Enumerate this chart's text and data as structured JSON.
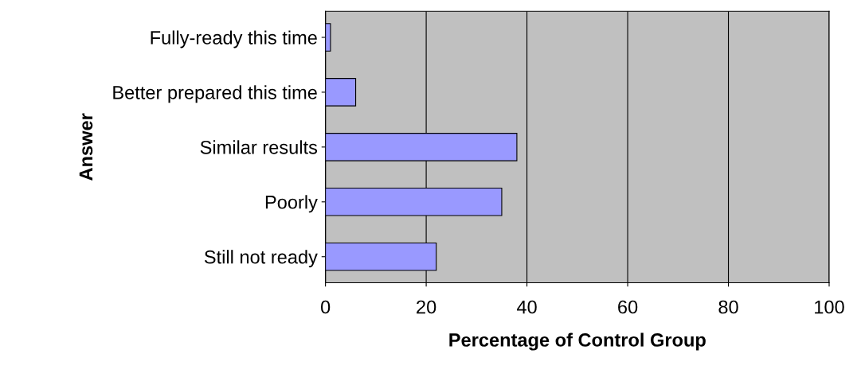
{
  "chart_data": {
    "type": "bar",
    "orientation": "horizontal",
    "xlabel": "Percentage of Control Group",
    "ylabel": "Answer",
    "categories": [
      "Fully-ready this time",
      "Better prepared this time",
      "Similar results",
      "Poorly",
      "Still not ready"
    ],
    "values": [
      1,
      6,
      38,
      35,
      22
    ],
    "color": "#9999ff",
    "xlim": [
      0,
      100
    ],
    "xticks": [
      0,
      20,
      40,
      60,
      80,
      100
    ],
    "grid": "x"
  }
}
